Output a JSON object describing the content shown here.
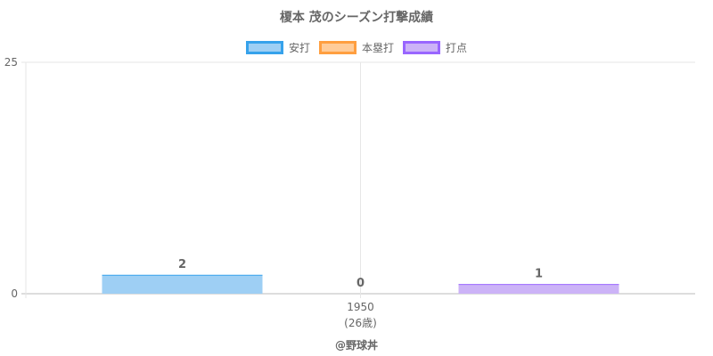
{
  "chart_data": {
    "type": "bar",
    "title": "榎本 茂のシーズン打撃成績",
    "categories": [
      "1950"
    ],
    "category_sublabels": [
      "(26歳)"
    ],
    "series": [
      {
        "name": "安打",
        "values": [
          2
        ],
        "fill": "#9ecff4",
        "border": "#36a2eb"
      },
      {
        "name": "本塁打",
        "values": [
          0
        ],
        "fill": "#ffcc99",
        "border": "#ff9f40"
      },
      {
        "name": "打点",
        "values": [
          1
        ],
        "fill": "#ccb3f7",
        "border": "#9966ff"
      }
    ],
    "ylim": [
      0,
      25
    ],
    "yticks": [
      "0",
      "25"
    ],
    "grid": true,
    "legend_position": "top"
  },
  "watermark": "@野球丼"
}
